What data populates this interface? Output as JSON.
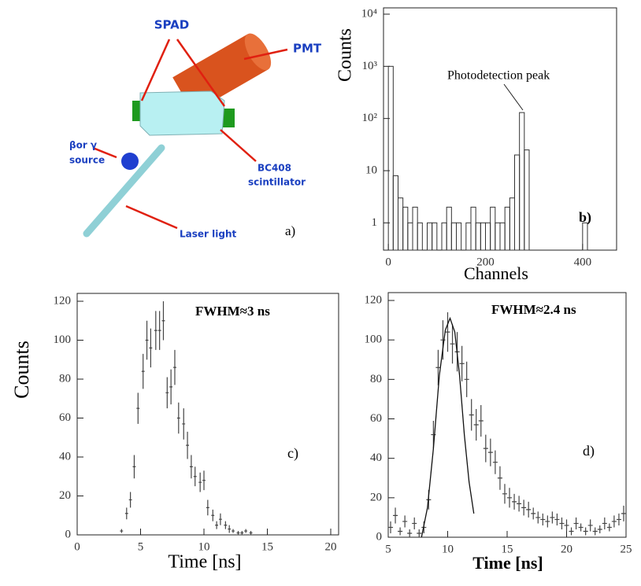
{
  "diagram": {
    "spad": "SPAD",
    "pmt": "PMT",
    "source_line1": "βor γ",
    "source_line2": "source",
    "scint_line1": "BC408",
    "scint_line2": "scintillator",
    "laser": "Laser light",
    "panel": "a)"
  },
  "chart_data": [
    {
      "type": "histogram",
      "ylabel": "Counts",
      "xlabel": "Channels",
      "log": true,
      "annotations": [
        "Photodetection peak",
        "b)"
      ],
      "bins": [
        -10,
        0,
        10,
        20,
        30,
        40,
        50,
        60,
        70,
        80,
        90,
        100,
        110,
        120,
        130,
        140,
        150,
        160,
        170,
        180,
        190,
        200,
        210,
        220,
        230,
        240,
        250,
        260,
        270,
        280,
        290,
        300,
        310,
        320,
        330,
        340,
        350,
        360,
        370,
        380,
        390,
        400,
        410,
        420,
        430,
        440,
        450,
        460,
        470
      ],
      "counts": [
        0,
        1000,
        8,
        3,
        2,
        1,
        2,
        1,
        0,
        1,
        1,
        0,
        1,
        2,
        1,
        1,
        0,
        1,
        2,
        1,
        1,
        1,
        2,
        1,
        1,
        2,
        3,
        20,
        130,
        25,
        0,
        0,
        0,
        0,
        0,
        0,
        0,
        0,
        0,
        0,
        0,
        1,
        0,
        0,
        0,
        0,
        0,
        0
      ],
      "color": "#333333",
      "xlim": [
        -10,
        470
      ],
      "xticks": [
        0,
        200,
        400
      ],
      "ylim": [
        0.3,
        10000
      ],
      "yticks": [
        1,
        10,
        {
          "value": 100,
          "label": "10²"
        },
        {
          "value": 1000,
          "label": "10³"
        },
        {
          "value": 10000,
          "label": "10⁴"
        }
      ]
    },
    {
      "type": "errorbar",
      "ylabel": "Counts",
      "xlabel": "Time [ns]",
      "annotations": [
        "FWHM≈3 ns",
        "c)"
      ],
      "x": [
        3.5,
        3.9,
        4.2,
        4.5,
        4.8,
        5.2,
        5.5,
        5.8,
        6.2,
        6.5,
        6.8,
        7.1,
        7.4,
        7.7,
        8.0,
        8.4,
        8.7,
        9.0,
        9.3,
        9.7,
        10.0,
        10.3,
        10.7,
        11.0,
        11.3,
        11.7,
        12.0,
        12.3,
        12.7,
        13.0,
        13.3,
        13.7
      ],
      "values": [
        2,
        11,
        18,
        35,
        65,
        84,
        100,
        96,
        105,
        105,
        110,
        73,
        76,
        86,
        60,
        57,
        46,
        35,
        30,
        27,
        28,
        14,
        10,
        5,
        8,
        5,
        3,
        2,
        1,
        1,
        2,
        1
      ],
      "errors": [
        1,
        3,
        4,
        6,
        8,
        9,
        10,
        10,
        10,
        10,
        10,
        8,
        9,
        9,
        8,
        8,
        7,
        6,
        5,
        5,
        5,
        4,
        3,
        2,
        3,
        2,
        2,
        1,
        1,
        1,
        1,
        1
      ],
      "xerr": 0.12,
      "color": "#444444",
      "xlim": [
        0,
        20
      ],
      "xticks": [
        0,
        5,
        10,
        15,
        20
      ],
      "ylim": [
        0,
        120
      ],
      "yticks": [
        0,
        20,
        40,
        60,
        80,
        100,
        120
      ]
    },
    {
      "type": "errorbar",
      "xlabel": "Time [ns]",
      "annotations": [
        "FWHM≈2.4 ns",
        "d)"
      ],
      "x": [
        5.2,
        5.6,
        6.0,
        6.4,
        6.8,
        7.2,
        7.6,
        8.0,
        8.4,
        8.8,
        9.2,
        9.6,
        10.0,
        10.4,
        10.8,
        11.2,
        11.6,
        12.0,
        12.4,
        12.8,
        13.2,
        13.6,
        14.0,
        14.4,
        14.8,
        15.2,
        15.6,
        16.0,
        16.4,
        16.8,
        17.2,
        17.6,
        18.0,
        18.4,
        18.8,
        19.2,
        19.6,
        20.0,
        20.4,
        20.8,
        21.2,
        21.6,
        22.0,
        22.4,
        22.8,
        23.2,
        23.6,
        24.0,
        24.4,
        24.8
      ],
      "values": [
        5,
        11,
        3,
        8,
        2,
        7,
        2,
        5,
        19,
        52,
        86,
        100,
        104,
        98,
        94,
        88,
        80,
        62,
        57,
        59,
        45,
        43,
        38,
        30,
        22,
        20,
        18,
        17,
        15,
        14,
        12,
        10,
        9,
        8,
        10,
        9,
        7,
        6,
        3,
        7,
        5,
        3,
        6,
        3,
        4,
        7,
        5,
        8,
        9,
        12
      ],
      "errors": [
        3,
        4,
        2,
        3,
        2,
        3,
        2,
        3,
        5,
        7,
        9,
        10,
        10,
        10,
        10,
        9,
        9,
        8,
        8,
        8,
        7,
        7,
        6,
        6,
        5,
        5,
        4,
        4,
        4,
        4,
        3,
        3,
        3,
        3,
        3,
        3,
        3,
        3,
        2,
        3,
        2,
        2,
        3,
        2,
        2,
        3,
        2,
        3,
        3,
        4
      ],
      "xerr": 0.2,
      "color": "#444444",
      "fit": {
        "x": [
          7.8,
          8.3,
          8.8,
          9.3,
          9.8,
          10.2,
          10.6,
          11.0,
          11.4,
          11.8,
          12.2
        ],
        "values": [
          0,
          15,
          45,
          82,
          105,
          111,
          104,
          82,
          52,
          28,
          12
        ]
      },
      "xlim": [
        5,
        25
      ],
      "xticks": [
        5,
        10,
        15,
        20,
        25
      ],
      "ylim": [
        0,
        120
      ],
      "yticks": [
        0,
        20,
        40,
        60,
        80,
        100,
        120
      ]
    }
  ]
}
